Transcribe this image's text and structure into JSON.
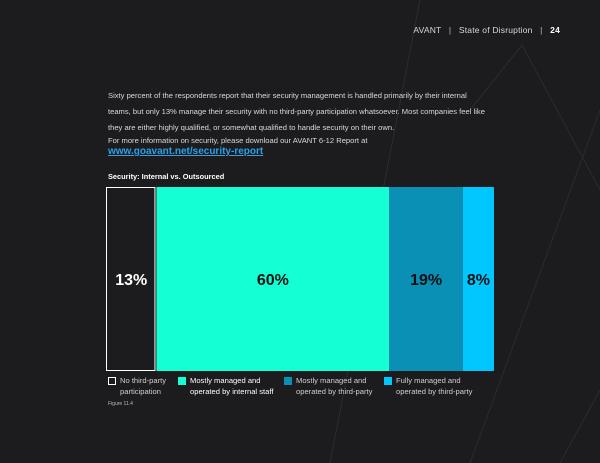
{
  "header": {
    "brand": "AVANT",
    "section": "State of Disruption",
    "page_number": "24"
  },
  "body": {
    "paragraph1": "Sixty percent of the respondents report that their security management is handled primarily by their internal teams, but only 13% manage their security with no third-party participation whatsoever. Most companies feel like they are either highly qualified, or somewhat qualified to handle security on their own.",
    "paragraph2": "For more information on security, please download our AVANT 6-12 Report at",
    "link_text": "www.goavant.net/security-report"
  },
  "chart_data": {
    "type": "bar",
    "orientation": "stacked-horizontal-100%",
    "title": "Security: Internal vs. Outsourced",
    "categories": [
      "No third-party participation",
      "Mostly managed and operated by internal staff",
      "Mostly managed and operated by third-party",
      "Fully managed and operated by third-party"
    ],
    "values": [
      13,
      60,
      19,
      8
    ],
    "value_labels": [
      "13%",
      "60%",
      "19%",
      "8%"
    ],
    "colors": [
      "#1c1c1e",
      "#14ffd4",
      "#0a8fb5",
      "#00c8ff"
    ],
    "outline_first_segment": true,
    "legend_position": "bottom",
    "grid": false,
    "figure_label": "Figure 11.4"
  },
  "legend": [
    {
      "line1": "No third-party",
      "line2": "participation"
    },
    {
      "line1": "Mostly managed and",
      "line2": "operated by internal staff"
    },
    {
      "line1": "Mostly managed and",
      "line2": "operated by third-party"
    },
    {
      "line1": "Fully managed and",
      "line2": "operated by third-party"
    }
  ]
}
